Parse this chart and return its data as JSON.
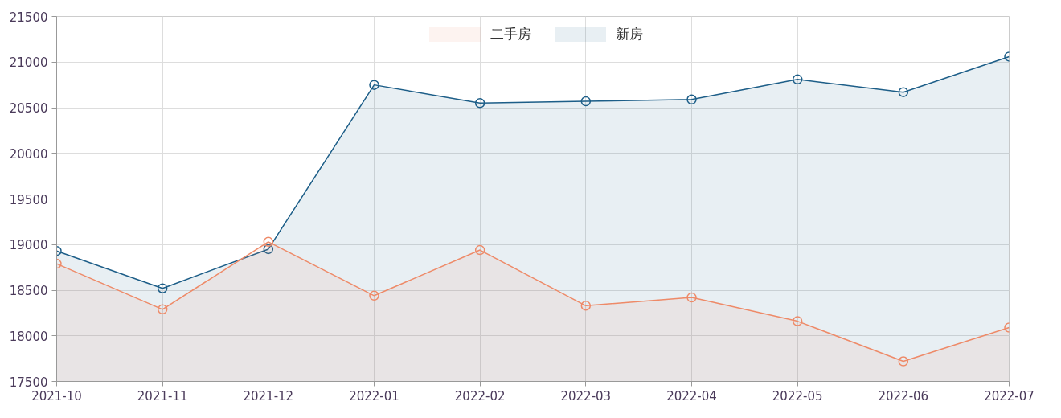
{
  "chart_data": {
    "type": "area",
    "categories": [
      "2021-10",
      "2021-11",
      "2021-12",
      "2022-01",
      "2022-02",
      "2022-03",
      "2022-04",
      "2022-05",
      "2022-06",
      "2022-07"
    ],
    "series": [
      {
        "name": "二手房",
        "color": "#ee8a68",
        "values": [
          18790,
          18290,
          19030,
          18440,
          18940,
          18330,
          18420,
          18160,
          17720,
          18090
        ]
      },
      {
        "name": "新房",
        "color": "#1d5e88",
        "values": [
          18930,
          18520,
          18950,
          20750,
          20550,
          20570,
          20590,
          20810,
          20670,
          21060
        ]
      }
    ],
    "ylim": [
      17500,
      21500
    ],
    "yticks": [
      17500,
      18000,
      18500,
      19000,
      19500,
      20000,
      20500,
      21000,
      21500
    ],
    "grid": true,
    "legend": "top",
    "marker": "circle",
    "line_style": "solid"
  }
}
